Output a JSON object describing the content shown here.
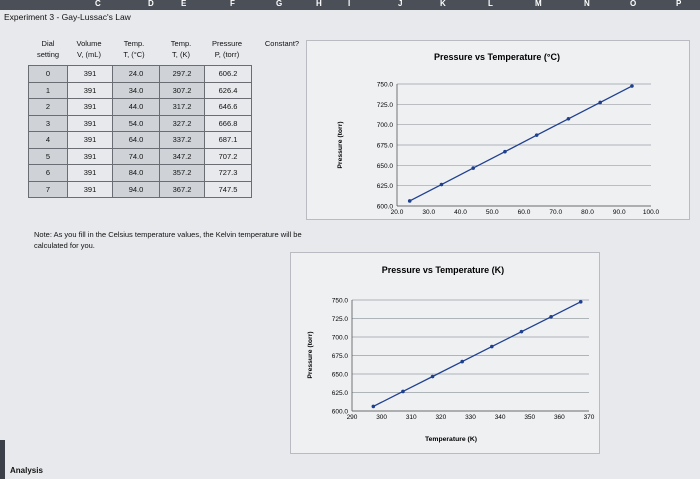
{
  "sheet": {
    "title": "Experiment 3 - Gay-Lussac's Law",
    "columns": [
      "C",
      "D",
      "E",
      "F",
      "G",
      "H",
      "I",
      "J",
      "K",
      "L",
      "M",
      "N",
      "O",
      "P"
    ]
  },
  "table": {
    "headers": [
      [
        "Dial",
        "setting"
      ],
      [
        "Volume",
        "V, (mL)"
      ],
      [
        "Temp.",
        "T, (°C)"
      ],
      [
        "Temp.",
        "T, (K)"
      ],
      [
        "Pressure",
        "P, (torr)"
      ],
      [
        "Constant?",
        ""
      ]
    ],
    "rows": [
      [
        "0",
        "391",
        "24.0",
        "297.2",
        "606.2"
      ],
      [
        "1",
        "391",
        "34.0",
        "307.2",
        "626.4"
      ],
      [
        "2",
        "391",
        "44.0",
        "317.2",
        "646.6"
      ],
      [
        "3",
        "391",
        "54.0",
        "327.2",
        "666.8"
      ],
      [
        "4",
        "391",
        "64.0",
        "337.2",
        "687.1"
      ],
      [
        "5",
        "391",
        "74.0",
        "347.2",
        "707.2"
      ],
      [
        "6",
        "391",
        "84.0",
        "357.2",
        "727.3"
      ],
      [
        "7",
        "391",
        "94.0",
        "367.2",
        "747.5"
      ]
    ]
  },
  "note": "Note: As you fill in the Celsius temperature values, the Kelvin temperature will be calculated for you.",
  "analysis": "Analysis",
  "chart_data": [
    {
      "type": "line",
      "title": "Pressure vs Temperature (°C)",
      "xlabel": "Temperature (°C)",
      "ylabel": "Pressure (torr)",
      "xlim": [
        20,
        100
      ],
      "ylim": [
        600,
        750
      ],
      "xticks": [
        "20.0",
        "30.0",
        "40.0",
        "50.0",
        "60.0",
        "70.0",
        "80.0",
        "90.0",
        "100.0"
      ],
      "yticks": [
        "600.0",
        "625.0",
        "650.0",
        "675.0",
        "700.0",
        "725.0",
        "750.0"
      ],
      "x": [
        24,
        34,
        44,
        54,
        64,
        74,
        84,
        94
      ],
      "y": [
        606.2,
        626.4,
        646.6,
        666.8,
        687.1,
        707.2,
        727.3,
        747.5
      ],
      "color": "#1f3f8f"
    },
    {
      "type": "line",
      "title": "Pressure vs Temperature (K)",
      "xlabel": "Temperature (K)",
      "ylabel": "Pressure (torr)",
      "xlim": [
        290,
        370
      ],
      "ylim": [
        600,
        750
      ],
      "xticks": [
        "290",
        "300",
        "310",
        "320",
        "330",
        "340",
        "350",
        "360",
        "370"
      ],
      "yticks": [
        "600.0",
        "625.0",
        "650.0",
        "675.0",
        "700.0",
        "725.0",
        "750.0"
      ],
      "x": [
        297.2,
        307.2,
        317.2,
        327.2,
        337.2,
        347.2,
        357.2,
        367.2
      ],
      "y": [
        606.2,
        626.4,
        646.6,
        666.8,
        687.1,
        707.2,
        727.3,
        747.5
      ],
      "color": "#1f3f8f"
    }
  ]
}
